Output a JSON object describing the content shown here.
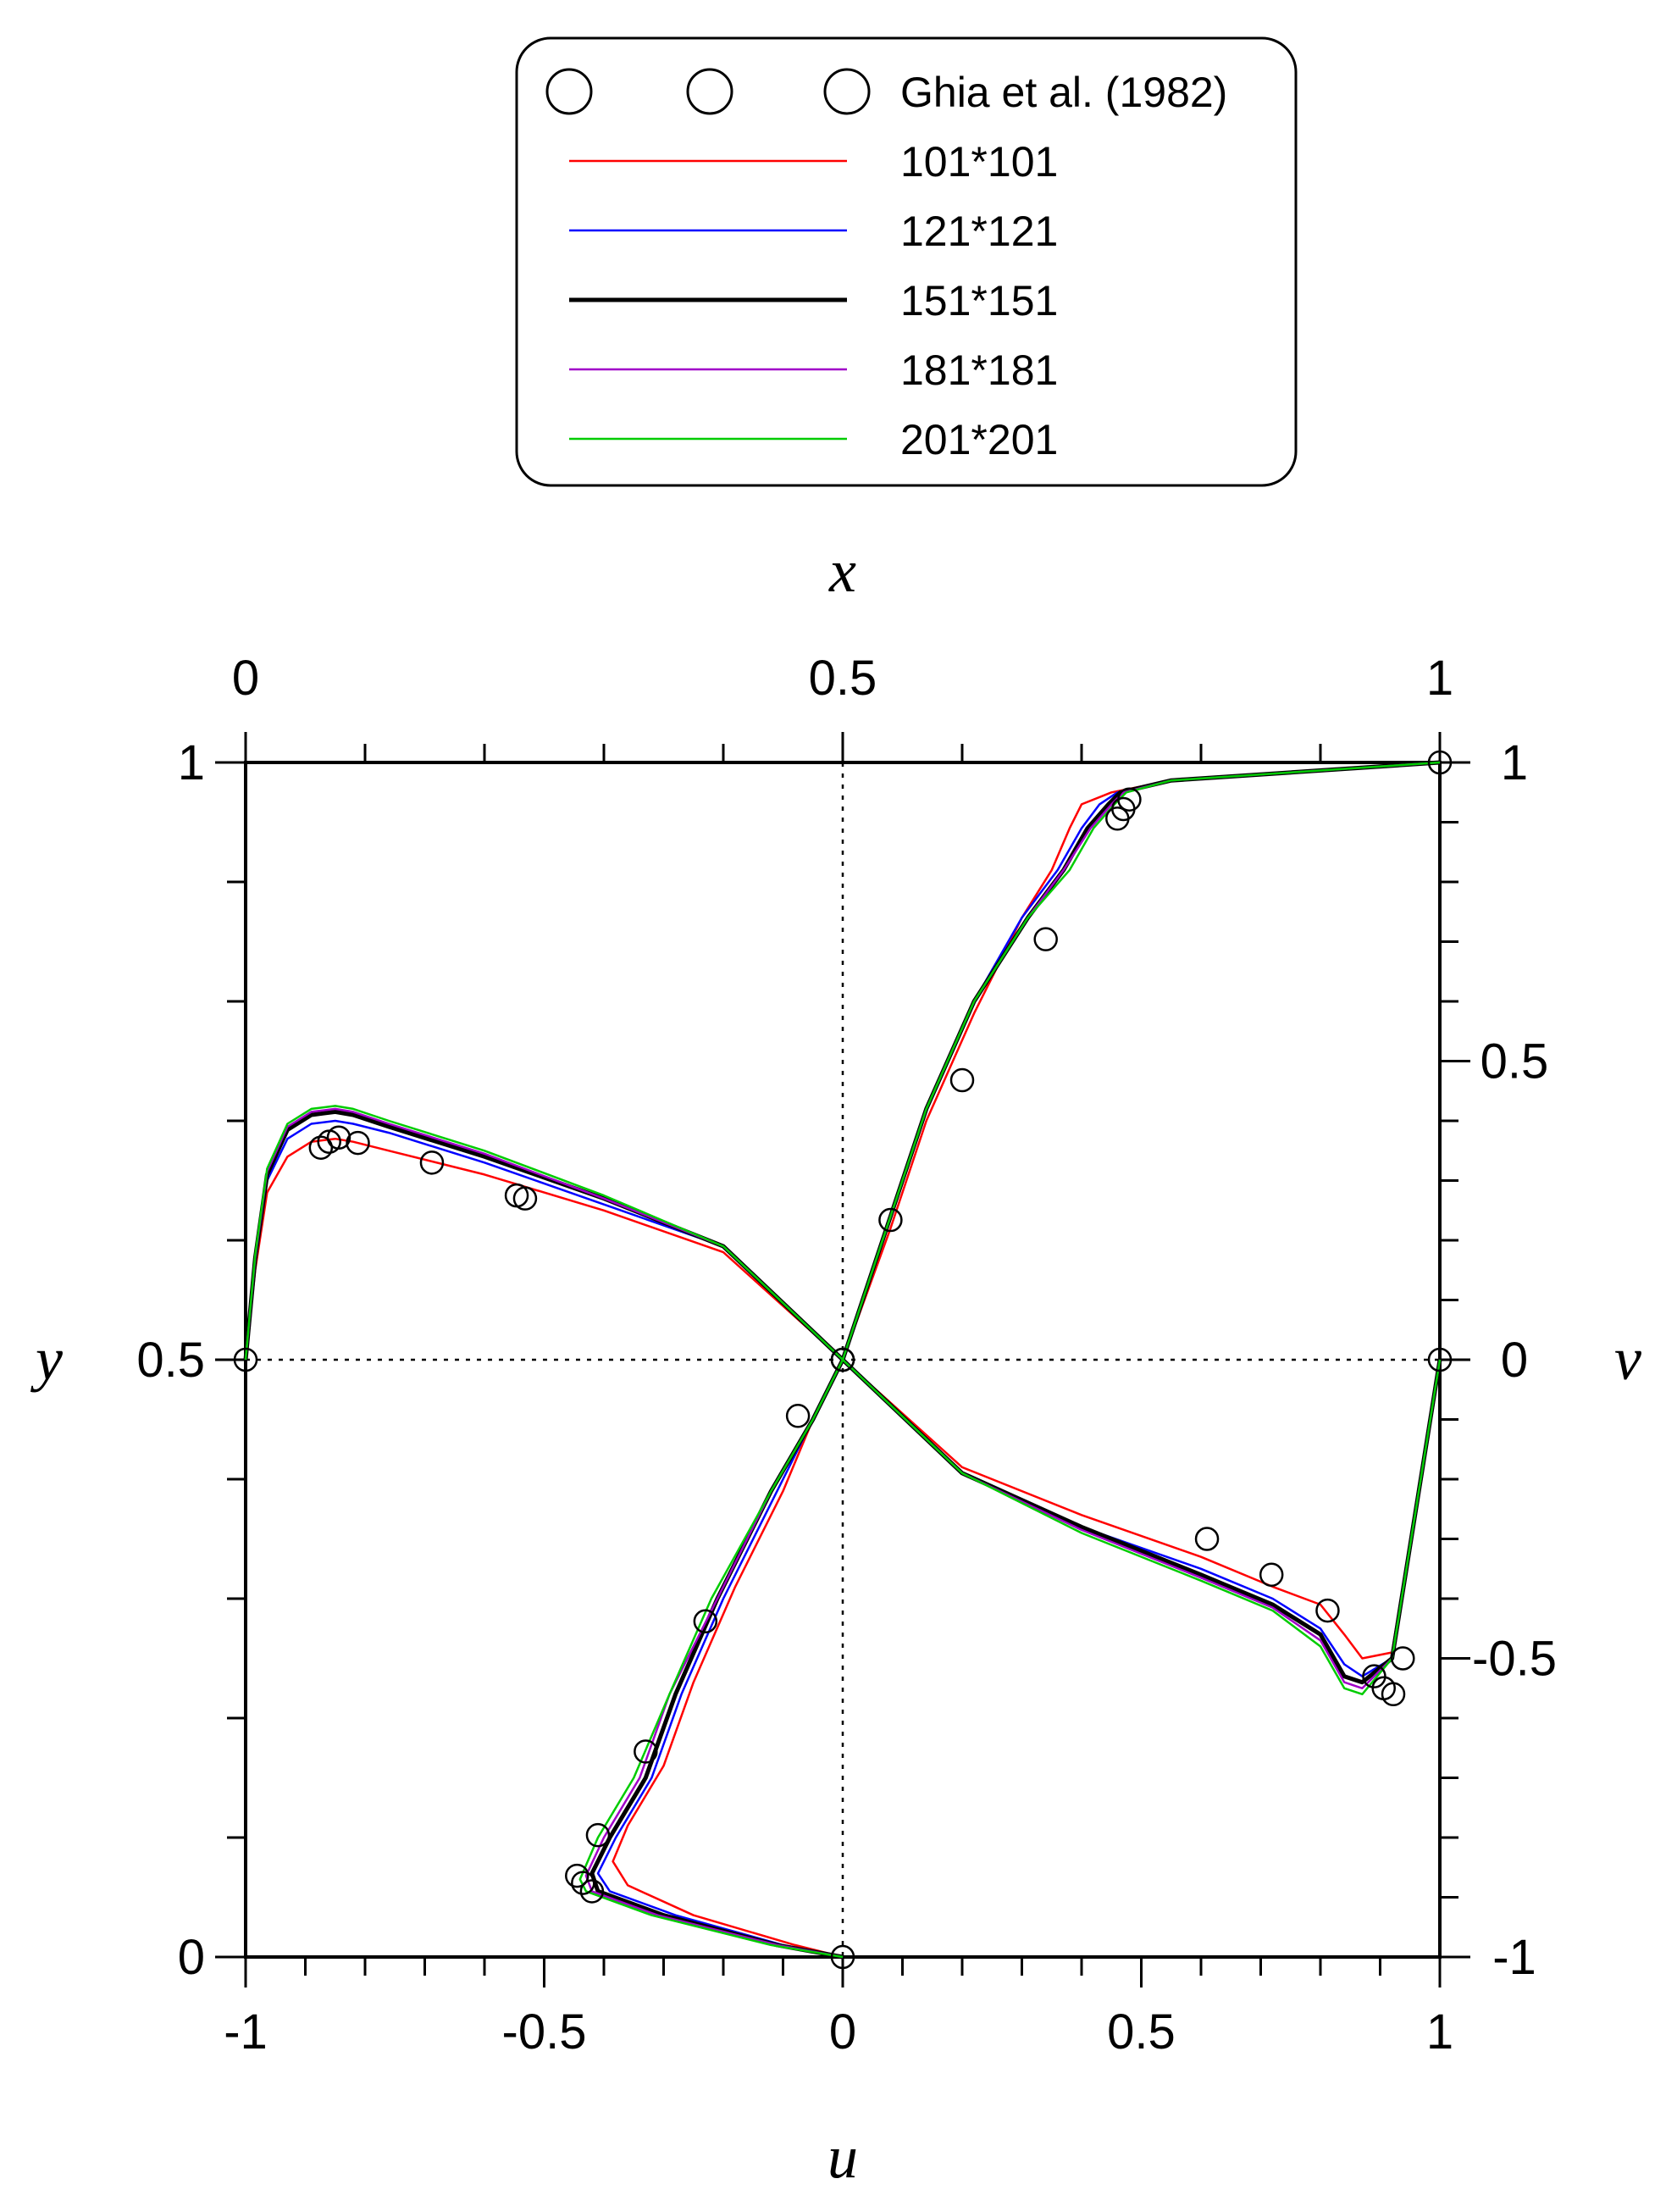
{
  "chart_data": {
    "type": "line",
    "axes": {
      "bottom": {
        "title": "u",
        "range": [
          -1,
          1
        ],
        "tick_labels": [
          "-1",
          "-0.5",
          "0",
          "0.5",
          "1"
        ]
      },
      "top": {
        "title": "x",
        "range": [
          0,
          1
        ],
        "tick_labels": [
          "0",
          "0.5",
          "1"
        ]
      },
      "left": {
        "title": "y",
        "range": [
          0,
          1
        ],
        "tick_labels": [
          "0",
          "0.5",
          "1"
        ]
      },
      "right": {
        "title": "v",
        "range": [
          -1,
          1
        ],
        "tick_labels": [
          "-1",
          "-0.5",
          "0",
          "0.5",
          "1"
        ]
      }
    },
    "grid": false,
    "reference_lines": [
      "u = 0",
      "y = 0.5"
    ],
    "legend": {
      "placement": "top",
      "entries": [
        "Ghia et al. (1982)",
        "101*101",
        "121*121",
        "151*151",
        "181*181",
        "201*201"
      ]
    },
    "series": [
      {
        "name": "101*101",
        "color": "#ff0000",
        "stroke": 2.5,
        "u_profile": {
          "u": [
            0,
            -0.08,
            -0.25,
            -0.36,
            -0.385,
            -0.36,
            -0.3,
            -0.25,
            -0.18,
            -0.1,
            -0.05,
            0,
            0.08,
            0.14,
            0.22,
            0.3,
            0.35,
            0.38,
            0.4,
            0.45,
            0.55,
            1.0
          ],
          "y": [
            0,
            0.01,
            0.035,
            0.06,
            0.08,
            0.11,
            0.16,
            0.23,
            0.31,
            0.39,
            0.45,
            0.5,
            0.61,
            0.7,
            0.79,
            0.87,
            0.91,
            0.945,
            0.965,
            0.975,
            0.985,
            1.0
          ]
        },
        "v_profile": {
          "x": [
            0,
            0.008,
            0.018,
            0.035,
            0.055,
            0.075,
            0.09,
            0.12,
            0.2,
            0.3,
            0.4,
            0.5,
            0.6,
            0.7,
            0.8,
            0.86,
            0.9,
            0.92,
            0.935,
            0.96,
            1.0
          ],
          "v": [
            0,
            0.15,
            0.28,
            0.34,
            0.365,
            0.37,
            0.365,
            0.35,
            0.31,
            0.25,
            0.18,
            0,
            -0.18,
            -0.26,
            -0.33,
            -0.38,
            -0.41,
            -0.46,
            -0.5,
            -0.49,
            0
          ]
        }
      },
      {
        "name": "121*121",
        "color": "#0000ff",
        "stroke": 2.5,
        "u_profile": {
          "u": [
            0,
            -0.1,
            -0.28,
            -0.39,
            -0.41,
            -0.38,
            -0.32,
            -0.27,
            -0.2,
            -0.11,
            -0.05,
            0,
            0.08,
            0.14,
            0.22,
            0.3,
            0.36,
            0.4,
            0.43,
            0.46,
            0.55,
            1.0
          ],
          "y": [
            0,
            0.01,
            0.035,
            0.055,
            0.07,
            0.1,
            0.15,
            0.22,
            0.3,
            0.39,
            0.45,
            0.5,
            0.62,
            0.71,
            0.8,
            0.87,
            0.91,
            0.945,
            0.965,
            0.975,
            0.985,
            1.0
          ]
        },
        "v_profile": {
          "x": [
            0,
            0.008,
            0.018,
            0.035,
            0.055,
            0.075,
            0.09,
            0.12,
            0.2,
            0.3,
            0.4,
            0.5,
            0.6,
            0.7,
            0.8,
            0.86,
            0.9,
            0.92,
            0.935,
            0.96,
            1.0
          ],
          "v": [
            0,
            0.16,
            0.3,
            0.37,
            0.395,
            0.4,
            0.395,
            0.38,
            0.33,
            0.26,
            0.19,
            0,
            -0.19,
            -0.28,
            -0.35,
            -0.4,
            -0.45,
            -0.51,
            -0.53,
            -0.5,
            0
          ]
        }
      },
      {
        "name": "151*151",
        "color": "#000000",
        "stroke": 5,
        "u_profile": {
          "u": [
            0,
            -0.11,
            -0.3,
            -0.41,
            -0.42,
            -0.39,
            -0.33,
            -0.28,
            -0.21,
            -0.12,
            -0.05,
            0,
            0.08,
            0.14,
            0.22,
            0.31,
            0.37,
            0.41,
            0.445,
            0.465,
            0.55,
            1.0
          ],
          "y": [
            0,
            0.01,
            0.035,
            0.055,
            0.07,
            0.1,
            0.15,
            0.22,
            0.3,
            0.39,
            0.45,
            0.5,
            0.62,
            0.71,
            0.8,
            0.87,
            0.91,
            0.945,
            0.965,
            0.975,
            0.985,
            1.0
          ]
        },
        "v_profile": {
          "x": [
            0,
            0.008,
            0.018,
            0.035,
            0.055,
            0.075,
            0.09,
            0.12,
            0.2,
            0.3,
            0.4,
            0.5,
            0.6,
            0.7,
            0.8,
            0.86,
            0.9,
            0.92,
            0.935,
            0.96,
            1.0
          ],
          "v": [
            0,
            0.17,
            0.31,
            0.385,
            0.41,
            0.415,
            0.41,
            0.39,
            0.34,
            0.27,
            0.19,
            0,
            -0.19,
            -0.28,
            -0.36,
            -0.41,
            -0.46,
            -0.53,
            -0.54,
            -0.5,
            0
          ]
        }
      },
      {
        "name": "181*181",
        "color": "#a000c8",
        "stroke": 2.5,
        "u_profile": {
          "u": [
            0,
            -0.11,
            -0.31,
            -0.42,
            -0.43,
            -0.4,
            -0.34,
            -0.29,
            -0.21,
            -0.12,
            -0.05,
            0,
            0.08,
            0.14,
            0.22,
            0.31,
            0.37,
            0.415,
            0.45,
            0.47,
            0.55,
            1.0
          ],
          "y": [
            0,
            0.01,
            0.035,
            0.055,
            0.068,
            0.1,
            0.15,
            0.22,
            0.3,
            0.39,
            0.45,
            0.5,
            0.62,
            0.71,
            0.8,
            0.87,
            0.91,
            0.945,
            0.965,
            0.975,
            0.985,
            1.0
          ]
        },
        "v_profile": {
          "x": [
            0,
            0.008,
            0.018,
            0.035,
            0.055,
            0.075,
            0.09,
            0.12,
            0.2,
            0.3,
            0.4,
            0.5,
            0.6,
            0.7,
            0.8,
            0.86,
            0.9,
            0.92,
            0.935,
            0.96,
            1.0
          ],
          "v": [
            0,
            0.17,
            0.315,
            0.39,
            0.415,
            0.42,
            0.415,
            0.395,
            0.345,
            0.27,
            0.19,
            0,
            -0.19,
            -0.285,
            -0.365,
            -0.415,
            -0.47,
            -0.54,
            -0.55,
            -0.5,
            0
          ]
        }
      },
      {
        "name": "201*201",
        "color": "#00cc00",
        "stroke": 2.5,
        "u_profile": {
          "u": [
            0,
            -0.12,
            -0.32,
            -0.43,
            -0.44,
            -0.41,
            -0.35,
            -0.29,
            -0.22,
            -0.12,
            -0.05,
            0,
            0.08,
            0.14,
            0.22,
            0.31,
            0.38,
            0.42,
            0.455,
            0.475,
            0.55,
            1.0
          ],
          "y": [
            0,
            0.01,
            0.035,
            0.055,
            0.065,
            0.1,
            0.15,
            0.22,
            0.3,
            0.39,
            0.45,
            0.5,
            0.62,
            0.71,
            0.8,
            0.87,
            0.91,
            0.945,
            0.965,
            0.975,
            0.985,
            1.0
          ]
        },
        "v_profile": {
          "x": [
            0,
            0.008,
            0.018,
            0.035,
            0.055,
            0.075,
            0.09,
            0.12,
            0.2,
            0.3,
            0.4,
            0.5,
            0.6,
            0.7,
            0.8,
            0.86,
            0.9,
            0.92,
            0.935,
            0.96,
            1.0
          ],
          "v": [
            0,
            0.175,
            0.32,
            0.395,
            0.42,
            0.425,
            0.42,
            0.4,
            0.35,
            0.275,
            0.19,
            0,
            -0.19,
            -0.29,
            -0.37,
            -0.42,
            -0.48,
            -0.55,
            -0.56,
            -0.5,
            0
          ]
        }
      }
    ],
    "reference_points": {
      "name": "Ghia et al. (1982)",
      "marker": "open-circle",
      "u_profile": {
        "u": [
          0,
          -0.42,
          -0.435,
          -0.445,
          -0.41,
          -0.33,
          -0.23,
          -0.075,
          0,
          0.08,
          0.2,
          0.34,
          0.46,
          0.47,
          0.48,
          1.0
        ],
        "y": [
          0,
          0.055,
          0.062,
          0.068,
          0.102,
          0.172,
          0.281,
          0.453,
          0.5,
          0.617,
          0.734,
          0.852,
          0.953,
          0.961,
          0.969,
          1.0
        ]
      },
      "v_profile": {
        "x": [
          0,
          0.063,
          0.07,
          0.078,
          0.094,
          0.156,
          0.227,
          0.234,
          0.5,
          0.805,
          0.859,
          0.906,
          0.945,
          0.953,
          0.961,
          0.969,
          1.0
        ],
        "v": [
          0,
          0.355,
          0.365,
          0.372,
          0.363,
          0.33,
          0.275,
          0.27,
          0,
          -0.3,
          -0.36,
          -0.42,
          -0.53,
          -0.55,
          -0.56,
          -0.5,
          0
        ]
      }
    }
  }
}
